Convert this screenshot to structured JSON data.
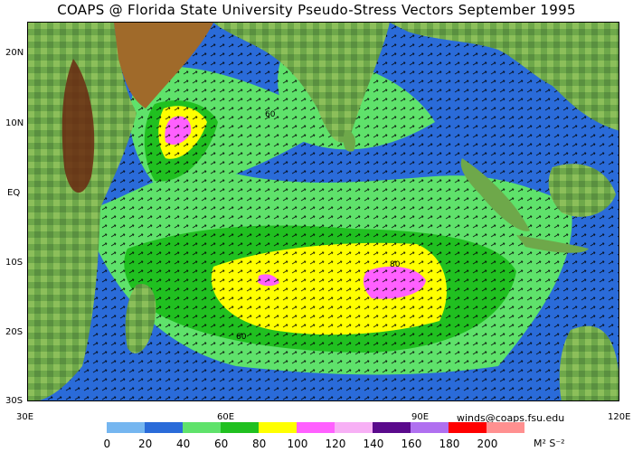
{
  "title": "COAPS @ Florida State University Pseudo-Stress Vectors  September 1995",
  "lat_labels": [
    "20N",
    "10N",
    "EQ",
    "10S",
    "20S",
    "30S"
  ],
  "lon_labels": [
    "30E",
    "60E",
    "90E",
    "120E"
  ],
  "credit": "winds@coaps.fsu.edu",
  "colorbar": {
    "colors": [
      "#75b6f0",
      "#2a6bd9",
      "#5fe26b",
      "#20c020",
      "#ffff00",
      "#ff60ff",
      "#f7b0f5",
      "#5a0a8c",
      "#b070f0",
      "#ff0000",
      "#ff9090"
    ],
    "labels": [
      "0",
      "20",
      "40",
      "60",
      "80",
      "100",
      "120",
      "140",
      "160",
      "180",
      "200"
    ],
    "units": "M² S⁻²"
  }
}
